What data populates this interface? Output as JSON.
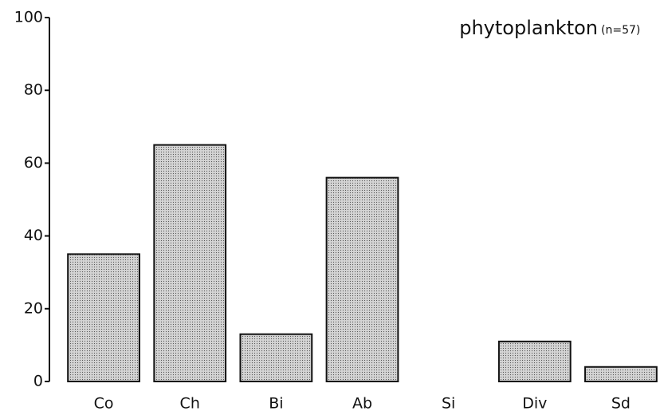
{
  "chart_data": {
    "type": "bar",
    "title": "phytoplankton",
    "annotation": "(n=57)",
    "categories": [
      "Co",
      "Ch",
      "Bi",
      "Ab",
      "Si",
      "Div",
      "Sd"
    ],
    "values": [
      35,
      65,
      13,
      56,
      0,
      11,
      4
    ],
    "color": "#d4d4d4",
    "ylim": [
      0,
      100
    ],
    "yticks": [
      0,
      20,
      40,
      60,
      80,
      100
    ],
    "grid": false
  }
}
